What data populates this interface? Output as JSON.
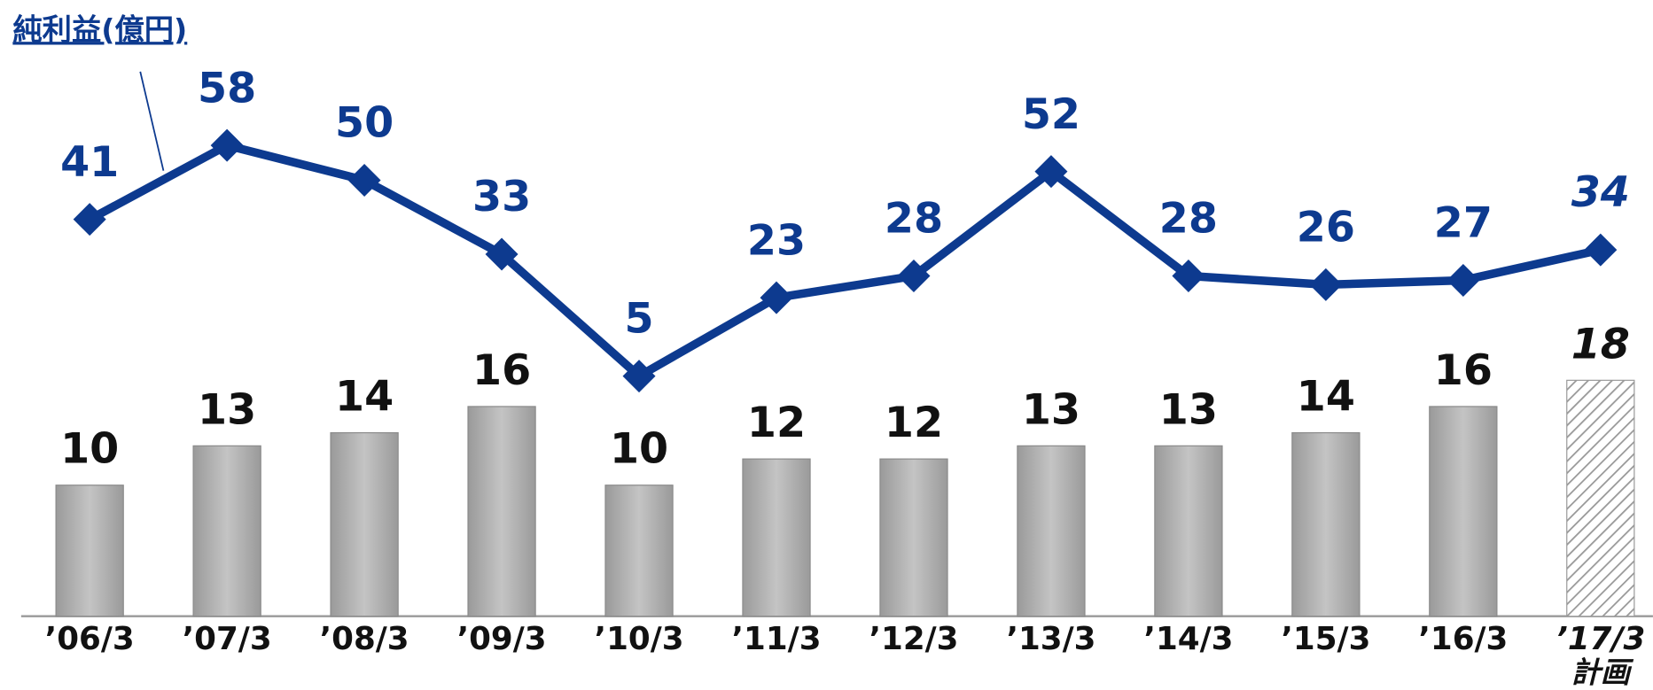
{
  "chart_data": {
    "type": "bar_line",
    "categories": [
      "’06/3",
      "’07/3",
      "’08/3",
      "’09/3",
      "’10/3",
      "’11/3",
      "’12/3",
      "’13/3",
      "’14/3",
      "’15/3",
      "’16/3",
      "’17/3"
    ],
    "plan_label": "計画",
    "series": [
      {
        "color": "#b2b2b2",
        "values": [
          10,
          13,
          14,
          16,
          10,
          12,
          12,
          13,
          13,
          14,
          16,
          18
        ]
      },
      {
        "name": "純利益(億円)",
        "color": "#0d3a8f",
        "values": [
          41,
          58,
          50,
          33,
          5,
          23,
          28,
          52,
          28,
          26,
          27,
          34
        ]
      }
    ]
  }
}
